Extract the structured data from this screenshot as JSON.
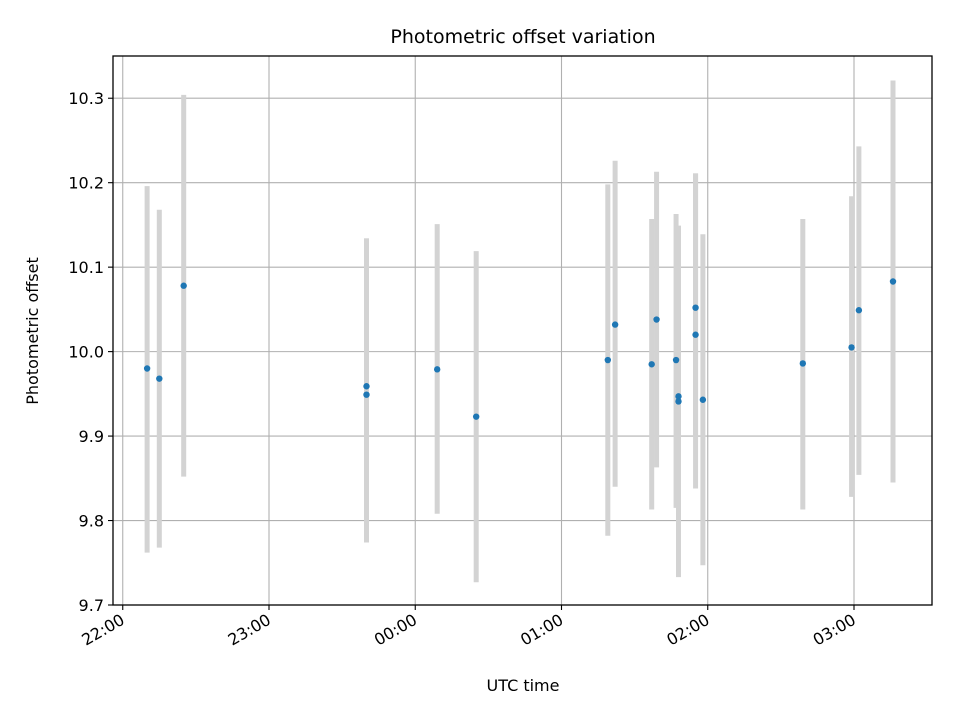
{
  "chart_data": {
    "type": "scatter",
    "title": "Photometric offset variation",
    "xlabel": "UTC time",
    "ylabel": "Photometric offset",
    "x_ticks": [
      "22:00",
      "23:00",
      "00:00",
      "01:00",
      "02:00",
      "03:00"
    ],
    "y_ticks": [
      "9.7",
      "9.8",
      "9.9",
      "10.0",
      "10.1",
      "10.2",
      "10.3"
    ],
    "ylim": [
      9.7,
      10.35
    ],
    "xlim": [
      "21:56",
      "03:32"
    ],
    "grid": true,
    "colors": {
      "points": "#1f77b4",
      "errorbars": "#d3d3d3",
      "grid": "#b0b0b0"
    },
    "points": [
      {
        "x": "22:10",
        "y": 9.98,
        "err_low": 9.762,
        "err_high": 10.196
      },
      {
        "x": "22:15",
        "y": 9.968,
        "err_low": 9.768,
        "err_high": 10.168
      },
      {
        "x": "22:25",
        "y": 10.078,
        "err_low": 9.852,
        "err_high": 10.304
      },
      {
        "x": "23:40",
        "y": 9.959,
        "err_low": 9.774,
        "err_high": 10.134
      },
      {
        "x": "23:40",
        "y": 9.949,
        "err_low": 9.774,
        "err_high": 10.134
      },
      {
        "x": "00:09",
        "y": 9.979,
        "err_low": 9.808,
        "err_high": 10.151
      },
      {
        "x": "00:25",
        "y": 9.923,
        "err_low": 9.727,
        "err_high": 10.119
      },
      {
        "x": "01:19",
        "y": 9.99,
        "err_low": 9.782,
        "err_high": 10.198
      },
      {
        "x": "01:22",
        "y": 10.032,
        "err_low": 9.84,
        "err_high": 10.226
      },
      {
        "x": "01:37",
        "y": 9.985,
        "err_low": 9.813,
        "err_high": 10.157
      },
      {
        "x": "01:39",
        "y": 10.038,
        "err_low": 9.863,
        "err_high": 10.213
      },
      {
        "x": "01:47",
        "y": 9.99,
        "err_low": 9.815,
        "err_high": 10.163
      },
      {
        "x": "01:48",
        "y": 9.947,
        "err_low": 9.733,
        "err_high": 10.149
      },
      {
        "x": "01:48",
        "y": 9.941,
        "err_low": 9.745,
        "err_high": 10.149
      },
      {
        "x": "01:55",
        "y": 10.02,
        "err_low": 9.838,
        "err_high": 10.211
      },
      {
        "x": "01:55",
        "y": 10.052,
        "err_low": 9.9,
        "err_high": 10.211
      },
      {
        "x": "01:58",
        "y": 9.943,
        "err_low": 9.747,
        "err_high": 10.139
      },
      {
        "x": "02:39",
        "y": 9.986,
        "err_low": 9.813,
        "err_high": 10.157
      },
      {
        "x": "02:59",
        "y": 10.005,
        "err_low": 9.828,
        "err_high": 10.184
      },
      {
        "x": "03:02",
        "y": 10.049,
        "err_low": 9.854,
        "err_high": 10.243
      },
      {
        "x": "03:16",
        "y": 10.083,
        "err_low": 9.845,
        "err_high": 10.321
      }
    ]
  }
}
